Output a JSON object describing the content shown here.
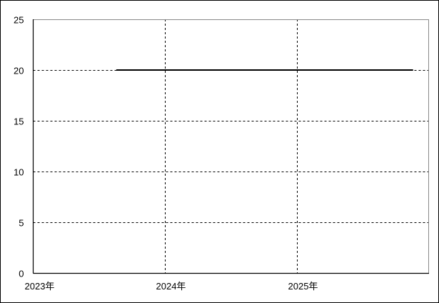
{
  "chart_data": {
    "type": "line",
    "title": "",
    "xlabel": "",
    "ylabel": "",
    "x_axis": "date",
    "xlim": [
      "2023-01-01",
      "2026-01-01"
    ],
    "ylim": [
      0,
      25
    ],
    "x_ticks": [
      {
        "date": "2023-01-01",
        "label": "2023年"
      },
      {
        "date": "2024-01-01",
        "label": "2024年"
      },
      {
        "date": "2025-01-01",
        "label": "2025年"
      }
    ],
    "y_ticks": [
      "0",
      "5",
      "10",
      "15",
      "20",
      "25"
    ],
    "grid": {
      "x": true,
      "y": true,
      "style": "dashed"
    },
    "series": [
      {
        "color": "#000000",
        "points": [
          {
            "x": "2023-08-19",
            "y": 20
          },
          {
            "x": "2025-11-18",
            "y": 20
          }
        ]
      }
    ]
  }
}
